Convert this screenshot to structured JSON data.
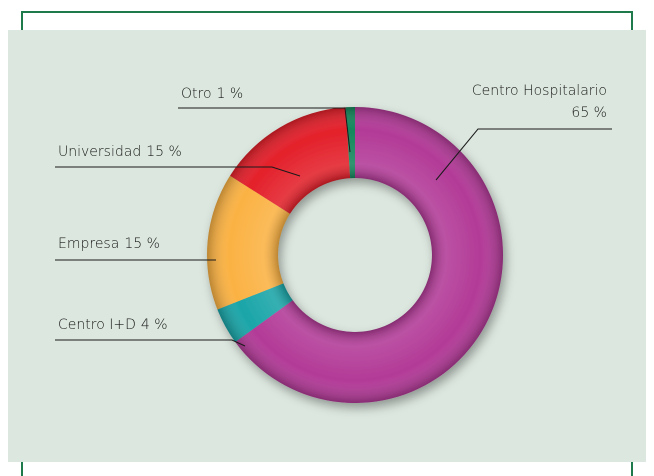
{
  "chart_data": {
    "type": "donut",
    "categories": [
      "Centro Hospitalario",
      "Centro I+D",
      "Empresa",
      "Universidad",
      "Otro"
    ],
    "values": [
      65,
      4,
      15,
      15,
      1
    ],
    "value_labels": [
      "65 %",
      "4 %",
      "15 %",
      "15 %",
      "1 %"
    ],
    "colors": [
      "#b23a97",
      "#1aa5a8",
      "#fbb243",
      "#e3202a",
      "#14875c"
    ]
  }
}
